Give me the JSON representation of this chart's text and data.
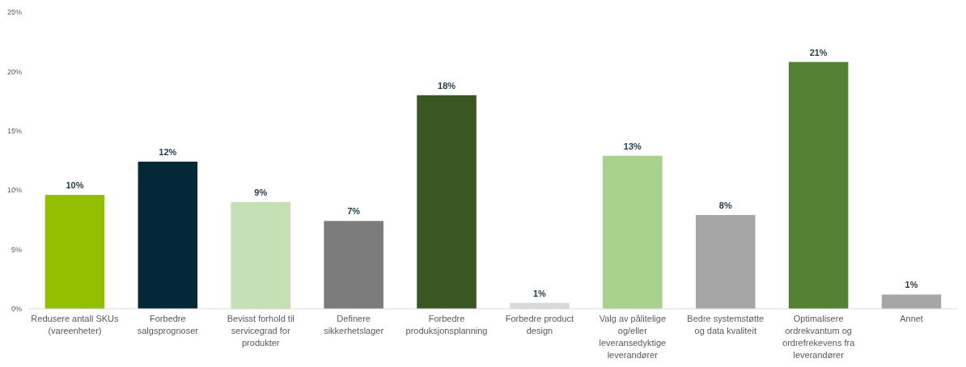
{
  "chart_data": {
    "type": "bar",
    "categories": [
      "Redusere antall SKUs (vareenheter)",
      "Forbedre salgsprognoser",
      "Bevisst forhold til servicegrad for produkter",
      "Definere sikkerhetslager",
      "Forbedre produksjonsplanning",
      "Forbedre product design",
      "Valg av pålitelige og/eller leveransedyktige leverandører",
      "Bedre systemstøtte og data kvaliteit",
      "Optimalisere ordrekvantum og ordrefrekevens fra leverandører",
      "Annet"
    ],
    "values": [
      9.6,
      12.4,
      9.0,
      7.4,
      18.0,
      0.5,
      12.9,
      7.9,
      20.8,
      1.2
    ],
    "colors": [
      "#92c000",
      "#032838",
      "#c5e0b4",
      "#7b7b7b",
      "#3a5622",
      "#d9d9d9",
      "#a9d18e",
      "#a6a6a6",
      "#548235",
      "#a6a6a6"
    ],
    "value_labels": [
      "10%",
      "12%",
      "9%",
      "7%",
      "18%",
      "1%",
      "13%",
      "8%",
      "21%",
      "1%"
    ],
    "ylim": [
      0,
      25
    ],
    "yticks": [
      {
        "value": 0,
        "label": "0%"
      },
      {
        "value": 5,
        "label": "5%"
      },
      {
        "value": 10,
        "label": "10%"
      },
      {
        "value": 15,
        "label": "15%"
      },
      {
        "value": 20,
        "label": "20%"
      },
      {
        "value": 25,
        "label": "25%"
      }
    ],
    "grid": false
  }
}
